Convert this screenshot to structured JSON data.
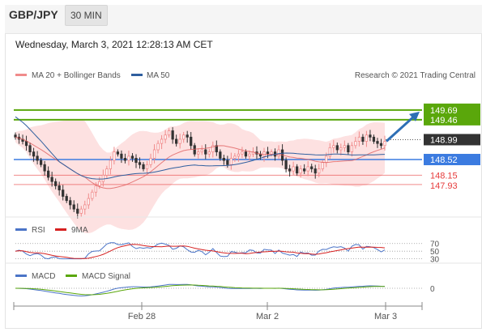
{
  "header": {
    "pair": "GBP/JPY",
    "timeframe": "30 MIN"
  },
  "date_line": "Wednesday, March 3, 2021 12:28:13 AM CET",
  "legend": {
    "bollinger": "MA 20 + Bollinger Bands",
    "ma50": "MA 50",
    "credit": "Research © 2021 Trading Central"
  },
  "colors": {
    "candle_up": "#f08b8b",
    "candle_down": "#333333",
    "bollinger_fill": "#fde1e1",
    "ma20": "#e06060",
    "ma50": "#2f5f9f",
    "green_level": "#5aa70b",
    "blue_level": "#3b7be0",
    "red_level": "#e63c3c",
    "arrow": "#2e6fb5",
    "rsi": "#4b74c7",
    "rsi_ma": "#d62020",
    "macd": "#4b74c7",
    "macd_signal": "#5aa70b"
  },
  "chart_data": [
    {
      "type": "candlestick",
      "title": "",
      "x_ticks": [
        "Feb 28",
        "Mar 2",
        "Mar 3"
      ],
      "ylim": [
        147.2,
        150.3
      ],
      "closes": [
        149.05,
        149.0,
        148.95,
        148.85,
        148.7,
        148.6,
        148.5,
        148.4,
        148.25,
        148.1,
        148.0,
        147.9,
        147.8,
        147.65,
        147.55,
        147.45,
        147.35,
        147.25,
        147.35,
        147.45,
        147.6,
        147.75,
        147.9,
        148.0,
        148.15,
        148.3,
        148.5,
        148.7,
        148.65,
        148.55,
        148.5,
        148.6,
        148.55,
        148.45,
        148.4,
        148.3,
        148.4,
        148.55,
        148.75,
        148.9,
        149.0,
        149.1,
        149.2,
        149.0,
        148.9,
        149.0,
        149.1,
        149.05,
        148.85,
        148.65,
        148.7,
        148.75,
        148.65,
        148.7,
        148.85,
        148.7,
        148.55,
        148.5,
        148.4,
        148.55,
        148.6,
        148.65,
        148.7,
        148.6,
        148.65,
        148.7,
        148.65,
        148.6,
        148.7,
        148.65,
        148.7,
        148.6,
        148.75,
        148.5,
        148.3,
        148.25,
        148.35,
        148.2,
        148.3,
        148.25,
        148.35,
        148.3,
        148.2,
        148.3,
        148.45,
        148.6,
        148.8,
        148.85,
        148.75,
        148.8,
        148.85,
        148.7,
        148.85,
        148.95,
        149.05,
        148.95,
        149.1,
        149.05,
        148.95,
        148.9,
        148.85,
        148.95
      ],
      "levels": {
        "resistance": [
          149.69,
          149.46
        ],
        "current": 148.99,
        "pivot": 148.52,
        "support": [
          148.15,
          147.93
        ]
      },
      "series": [
        {
          "name": "MA 20 + Bollinger Bands"
        },
        {
          "name": "MA 50"
        }
      ]
    },
    {
      "type": "line",
      "y_ticks": [
        70,
        50,
        30
      ],
      "series": [
        {
          "name": "RSI"
        },
        {
          "name": "9MA"
        }
      ]
    },
    {
      "type": "line",
      "y_ticks": [
        0
      ],
      "series": [
        {
          "name": "MACD"
        },
        {
          "name": "MACD Signal"
        }
      ]
    }
  ]
}
